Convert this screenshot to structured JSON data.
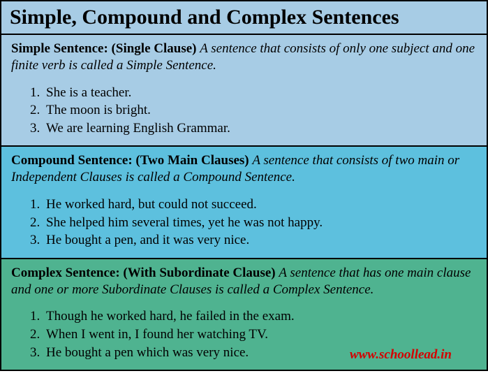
{
  "title": "Simple, Compound and Complex Sentences",
  "sections": [
    {
      "name": "Simple Sentence:",
      "qualifier": "(Single Clause)",
      "definition": "A sentence that consists of only one subject and one finite verb is called a Simple Sentence.",
      "examples": [
        "She is a teacher.",
        "The moon is bright.",
        "We are learning English Grammar."
      ]
    },
    {
      "name": "Compound Sentence:",
      "qualifier": "(Two Main Clauses)",
      "definition": "A sentence that consists of two main or Independent Clauses is called a Compound Sentence.",
      "examples": [
        "He worked hard, but could not succeed.",
        "She helped him several times, yet he was not happy.",
        "He bought a pen, and it was very nice."
      ]
    },
    {
      "name": "Complex Sentence:",
      "qualifier": "(With Subordinate Clause)",
      "definition": "A sentence that has one main clause and one or more Subordinate Clauses is called a Complex Sentence.",
      "examples": [
        "Though he worked hard, he failed in the exam.",
        "When I went in, I found her watching TV.",
        "He bought a pen which was very nice."
      ]
    }
  ],
  "watermark": "www.schoollead.in",
  "colors": {
    "title_bg": "#a7cce5",
    "simple_bg": "#a7cce5",
    "compound_bg": "#5dc0de",
    "complex_bg": "#4fb390",
    "border": "#000000",
    "watermark": "#d40000"
  }
}
